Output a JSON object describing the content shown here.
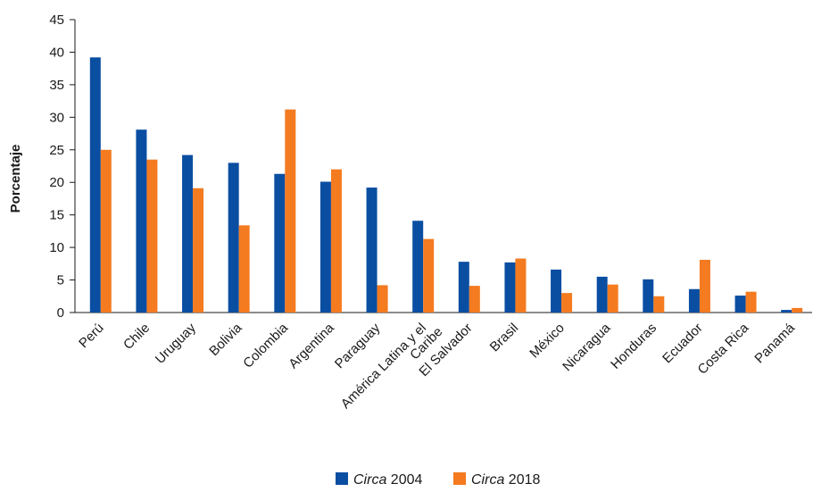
{
  "chart_data": {
    "type": "bar",
    "ylabel": "Porcentaje",
    "ylim": [
      0,
      45
    ],
    "yticks": [
      0,
      5,
      10,
      15,
      20,
      25,
      30,
      35,
      40,
      45
    ],
    "grid": false,
    "legend_position": "bottom-center",
    "categories": [
      "Perú",
      "Chile",
      "Uruguay",
      "Bolivia",
      "Colombia",
      "Argentina",
      "Paraguay",
      "América Latina y el Caribe",
      "El Salvador",
      "Brasil",
      "México",
      "Nicaragua",
      "Honduras",
      "Ecuador",
      "Costa Rica",
      "Panamá"
    ],
    "series": [
      {
        "name_italic": "Circa",
        "name_rest": " 2004",
        "color": "#0a4ea2",
        "values": [
          39.2,
          28.1,
          24.2,
          23.0,
          21.3,
          20.1,
          19.2,
          14.1,
          7.8,
          7.7,
          6.6,
          5.5,
          5.1,
          3.6,
          2.6,
          0.4
        ]
      },
      {
        "name_italic": "Circa",
        "name_rest": " 2018",
        "color": "#f47b20",
        "values": [
          25.0,
          23.5,
          19.1,
          13.4,
          31.2,
          22.0,
          4.2,
          11.3,
          4.1,
          8.3,
          3.0,
          4.3,
          2.5,
          8.1,
          3.2,
          0.7
        ]
      }
    ]
  }
}
